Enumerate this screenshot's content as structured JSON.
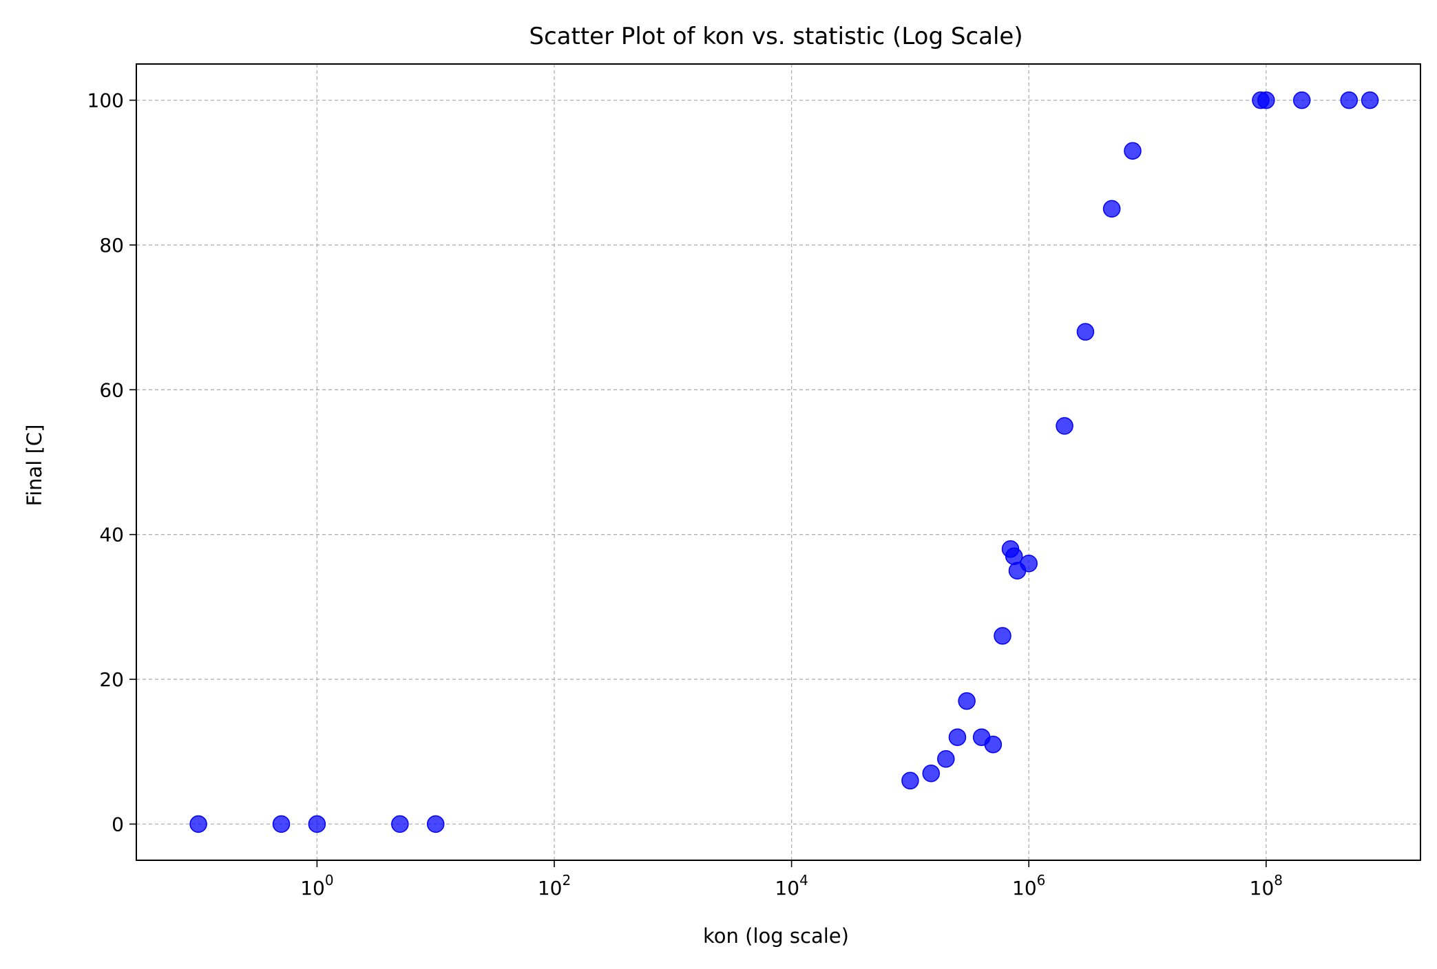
{
  "chart_data": {
    "type": "scatter",
    "title": "Scatter Plot of kon vs. statistic (Log Scale)",
    "xlabel": "kon (log scale)",
    "ylabel": "Final [C]",
    "xscale": "log",
    "xlim": [
      0.03,
      2000000000
    ],
    "ylim": [
      -5,
      105
    ],
    "x_ticks": [
      {
        "value": 1,
        "base": "10",
        "exp": "0"
      },
      {
        "value": 100,
        "base": "10",
        "exp": "2"
      },
      {
        "value": 10000,
        "base": "10",
        "exp": "4"
      },
      {
        "value": 1000000,
        "base": "10",
        "exp": "6"
      },
      {
        "value": 100000000,
        "base": "10",
        "exp": "8"
      }
    ],
    "y_ticks": [
      0,
      20,
      40,
      60,
      80,
      100
    ],
    "grid": true,
    "marker_color": "#0000ff",
    "series": [
      {
        "points": [
          {
            "x": 0.1,
            "y": 0
          },
          {
            "x": 0.5,
            "y": 0
          },
          {
            "x": 1,
            "y": 0
          },
          {
            "x": 5,
            "y": 0
          },
          {
            "x": 10,
            "y": 0
          },
          {
            "x": 100000,
            "y": 6
          },
          {
            "x": 150000,
            "y": 7
          },
          {
            "x": 200000,
            "y": 9
          },
          {
            "x": 250000,
            "y": 12
          },
          {
            "x": 300000,
            "y": 17
          },
          {
            "x": 400000,
            "y": 12
          },
          {
            "x": 500000,
            "y": 11
          },
          {
            "x": 600000,
            "y": 26
          },
          {
            "x": 700000,
            "y": 38
          },
          {
            "x": 750000,
            "y": 37
          },
          {
            "x": 800000,
            "y": 35
          },
          {
            "x": 1000000,
            "y": 36
          },
          {
            "x": 2000000,
            "y": 55
          },
          {
            "x": 3000000,
            "y": 68
          },
          {
            "x": 5000000,
            "y": 85
          },
          {
            "x": 7500000,
            "y": 93
          },
          {
            "x": 90000000,
            "y": 100
          },
          {
            "x": 100000000,
            "y": 100
          },
          {
            "x": 200000000,
            "y": 100
          },
          {
            "x": 500000000,
            "y": 100
          },
          {
            "x": 750000000,
            "y": 100
          }
        ]
      }
    ]
  }
}
